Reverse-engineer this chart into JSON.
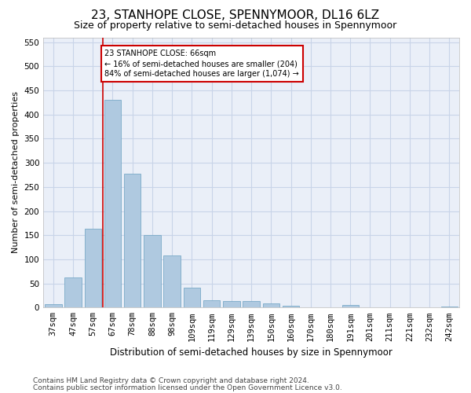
{
  "title": "23, STANHOPE CLOSE, SPENNYMOOR, DL16 6LZ",
  "subtitle": "Size of property relative to semi-detached houses in Spennymoor",
  "xlabel": "Distribution of semi-detached houses by size in Spennymoor",
  "ylabel": "Number of semi-detached properties",
  "categories": [
    "37sqm",
    "47sqm",
    "57sqm",
    "67sqm",
    "78sqm",
    "88sqm",
    "98sqm",
    "109sqm",
    "119sqm",
    "129sqm",
    "139sqm",
    "150sqm",
    "160sqm",
    "170sqm",
    "180sqm",
    "191sqm",
    "201sqm",
    "211sqm",
    "221sqm",
    "232sqm",
    "242sqm"
  ],
  "values": [
    7,
    63,
    163,
    430,
    278,
    150,
    108,
    42,
    15,
    14,
    14,
    9,
    4,
    1,
    1,
    5,
    1,
    0,
    0,
    0,
    2
  ],
  "bar_color": "#afc9e0",
  "bar_edge_color": "#7aaac8",
  "property_label": "23 STANHOPE CLOSE: 66sqm",
  "pct_smaller": 16,
  "n_smaller": 204,
  "pct_larger": 84,
  "n_larger": 1074,
  "vline_color": "#cc0000",
  "annotation_box_edge": "#cc0000",
  "ylim": [
    0,
    560
  ],
  "yticks": [
    0,
    50,
    100,
    150,
    200,
    250,
    300,
    350,
    400,
    450,
    500,
    550
  ],
  "grid_color": "#c8d4e8",
  "bg_color": "#eaeff8",
  "footer1": "Contains HM Land Registry data © Crown copyright and database right 2024.",
  "footer2": "Contains public sector information licensed under the Open Government Licence v3.0.",
  "title_fontsize": 11,
  "subtitle_fontsize": 9,
  "xlabel_fontsize": 8.5,
  "ylabel_fontsize": 8,
  "tick_fontsize": 7.5,
  "footer_fontsize": 6.5
}
